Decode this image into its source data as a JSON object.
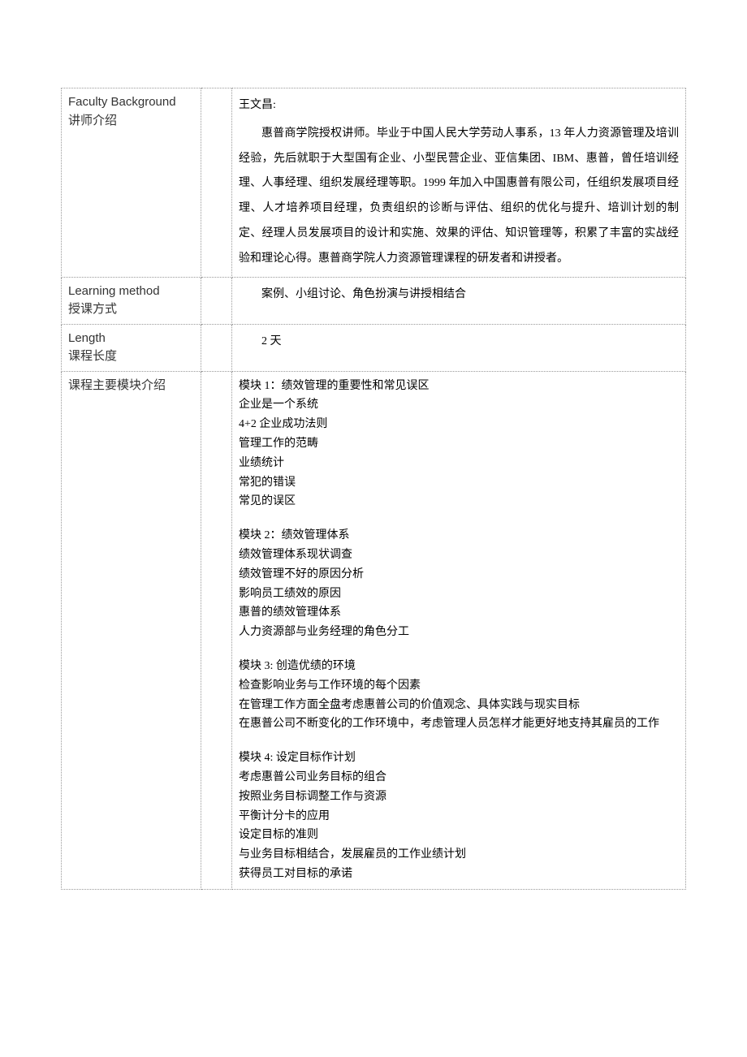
{
  "rows": {
    "faculty": {
      "label_en": "Faculty Background",
      "label_cn": "讲师介绍",
      "name": "王文昌:",
      "para": "惠普商学院授权讲师。毕业于中国人民大学劳动人事系，13 年人力资源管理及培训经验，先后就职于大型国有企业、小型民营企业、亚信集团、IBM、惠普，曾任培训经理、人事经理、组织发展经理等职。1999 年加入中国惠普有限公司，任组织发展项目经理、人才培养项目经理，负责组织的诊断与评估、组织的优化与提升、培训计划的制定、经理人员发展项目的设计和实施、效果的评估、知识管理等，积累了丰富的实战经验和理论心得。惠普商学院人力资源管理课程的研发者和讲授者。"
    },
    "method": {
      "label_en": "Learning method",
      "label_cn": "授课方式",
      "text": "案例、小组讨论、角色扮演与讲授相结合"
    },
    "length": {
      "label_en": "Length",
      "label_cn": "课程长度",
      "text": "2 天"
    },
    "modules": {
      "label": "课程主要模块介绍",
      "blocks": [
        {
          "title": "模块 1：绩效管理的重要性和常见误区",
          "items": [
            "企业是一个系统",
            "4+2 企业成功法则",
            "管理工作的范畴",
            "业绩统计",
            "常犯的错误",
            "常见的误区"
          ]
        },
        {
          "title": "模块 2：绩效管理体系",
          "items": [
            "绩效管理体系现状调查",
            "绩效管理不好的原因分析",
            "影响员工绩效的原因",
            "惠普的绩效管理体系",
            "人力资源部与业务经理的角色分工"
          ]
        },
        {
          "title": "模块 3: 创造优绩的环境",
          "items": [
            "检查影响业务与工作环境的每个因素",
            "在管理工作方面全盘考虑惠普公司的价值观念、具体实践与现实目标",
            "在惠普公司不断变化的工作环境中，考虑管理人员怎样才能更好地支持其雇员的工作"
          ]
        },
        {
          "title": "模块 4: 设定目标作计划",
          "items": [
            "考虑惠普公司业务目标的组合",
            "按照业务目标调整工作与资源",
            "平衡计分卡的应用",
            "设定目标的准则",
            "与业务目标相结合，发展雇员的工作业绩计划",
            "获得员工对目标的承诺"
          ]
        }
      ]
    }
  }
}
